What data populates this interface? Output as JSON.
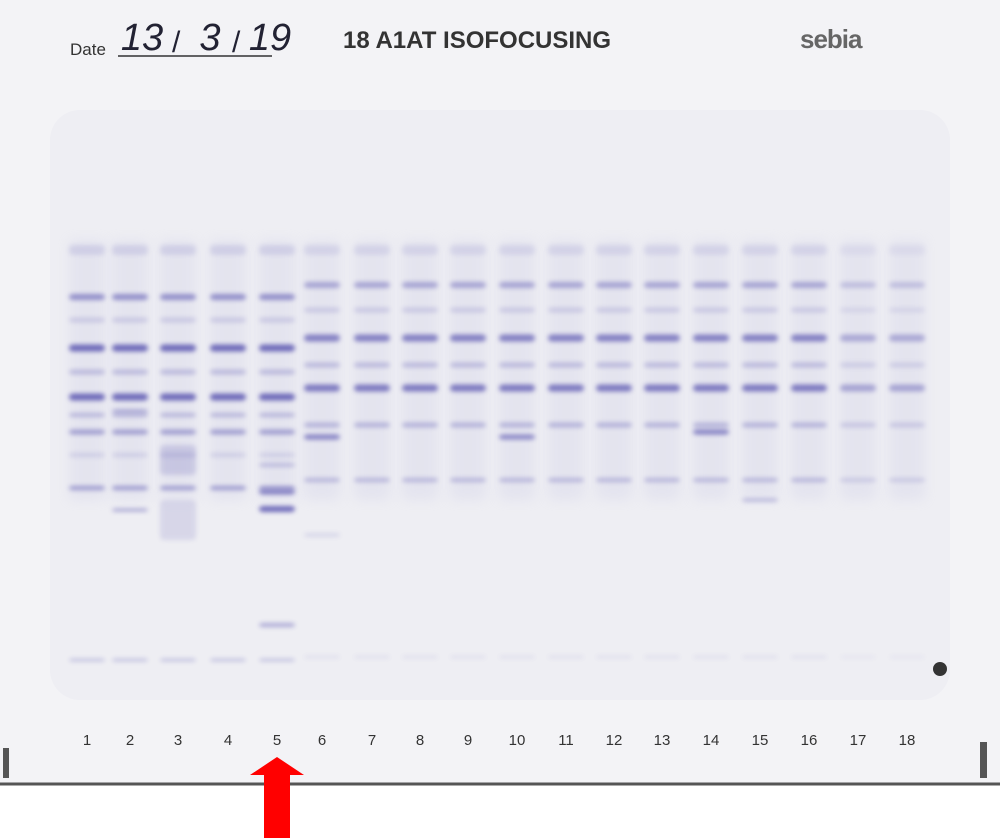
{
  "header": {
    "date_label": "Date",
    "date_day": "13",
    "date_month": "3",
    "date_year": "19",
    "title": "18 A1AT ISOFOCUSING",
    "brand": "sebia"
  },
  "lanes": [
    "1",
    "2",
    "3",
    "4",
    "5",
    "6",
    "7",
    "8",
    "9",
    "10",
    "11",
    "12",
    "13",
    "14",
    "15",
    "16",
    "17",
    "18"
  ]
}
